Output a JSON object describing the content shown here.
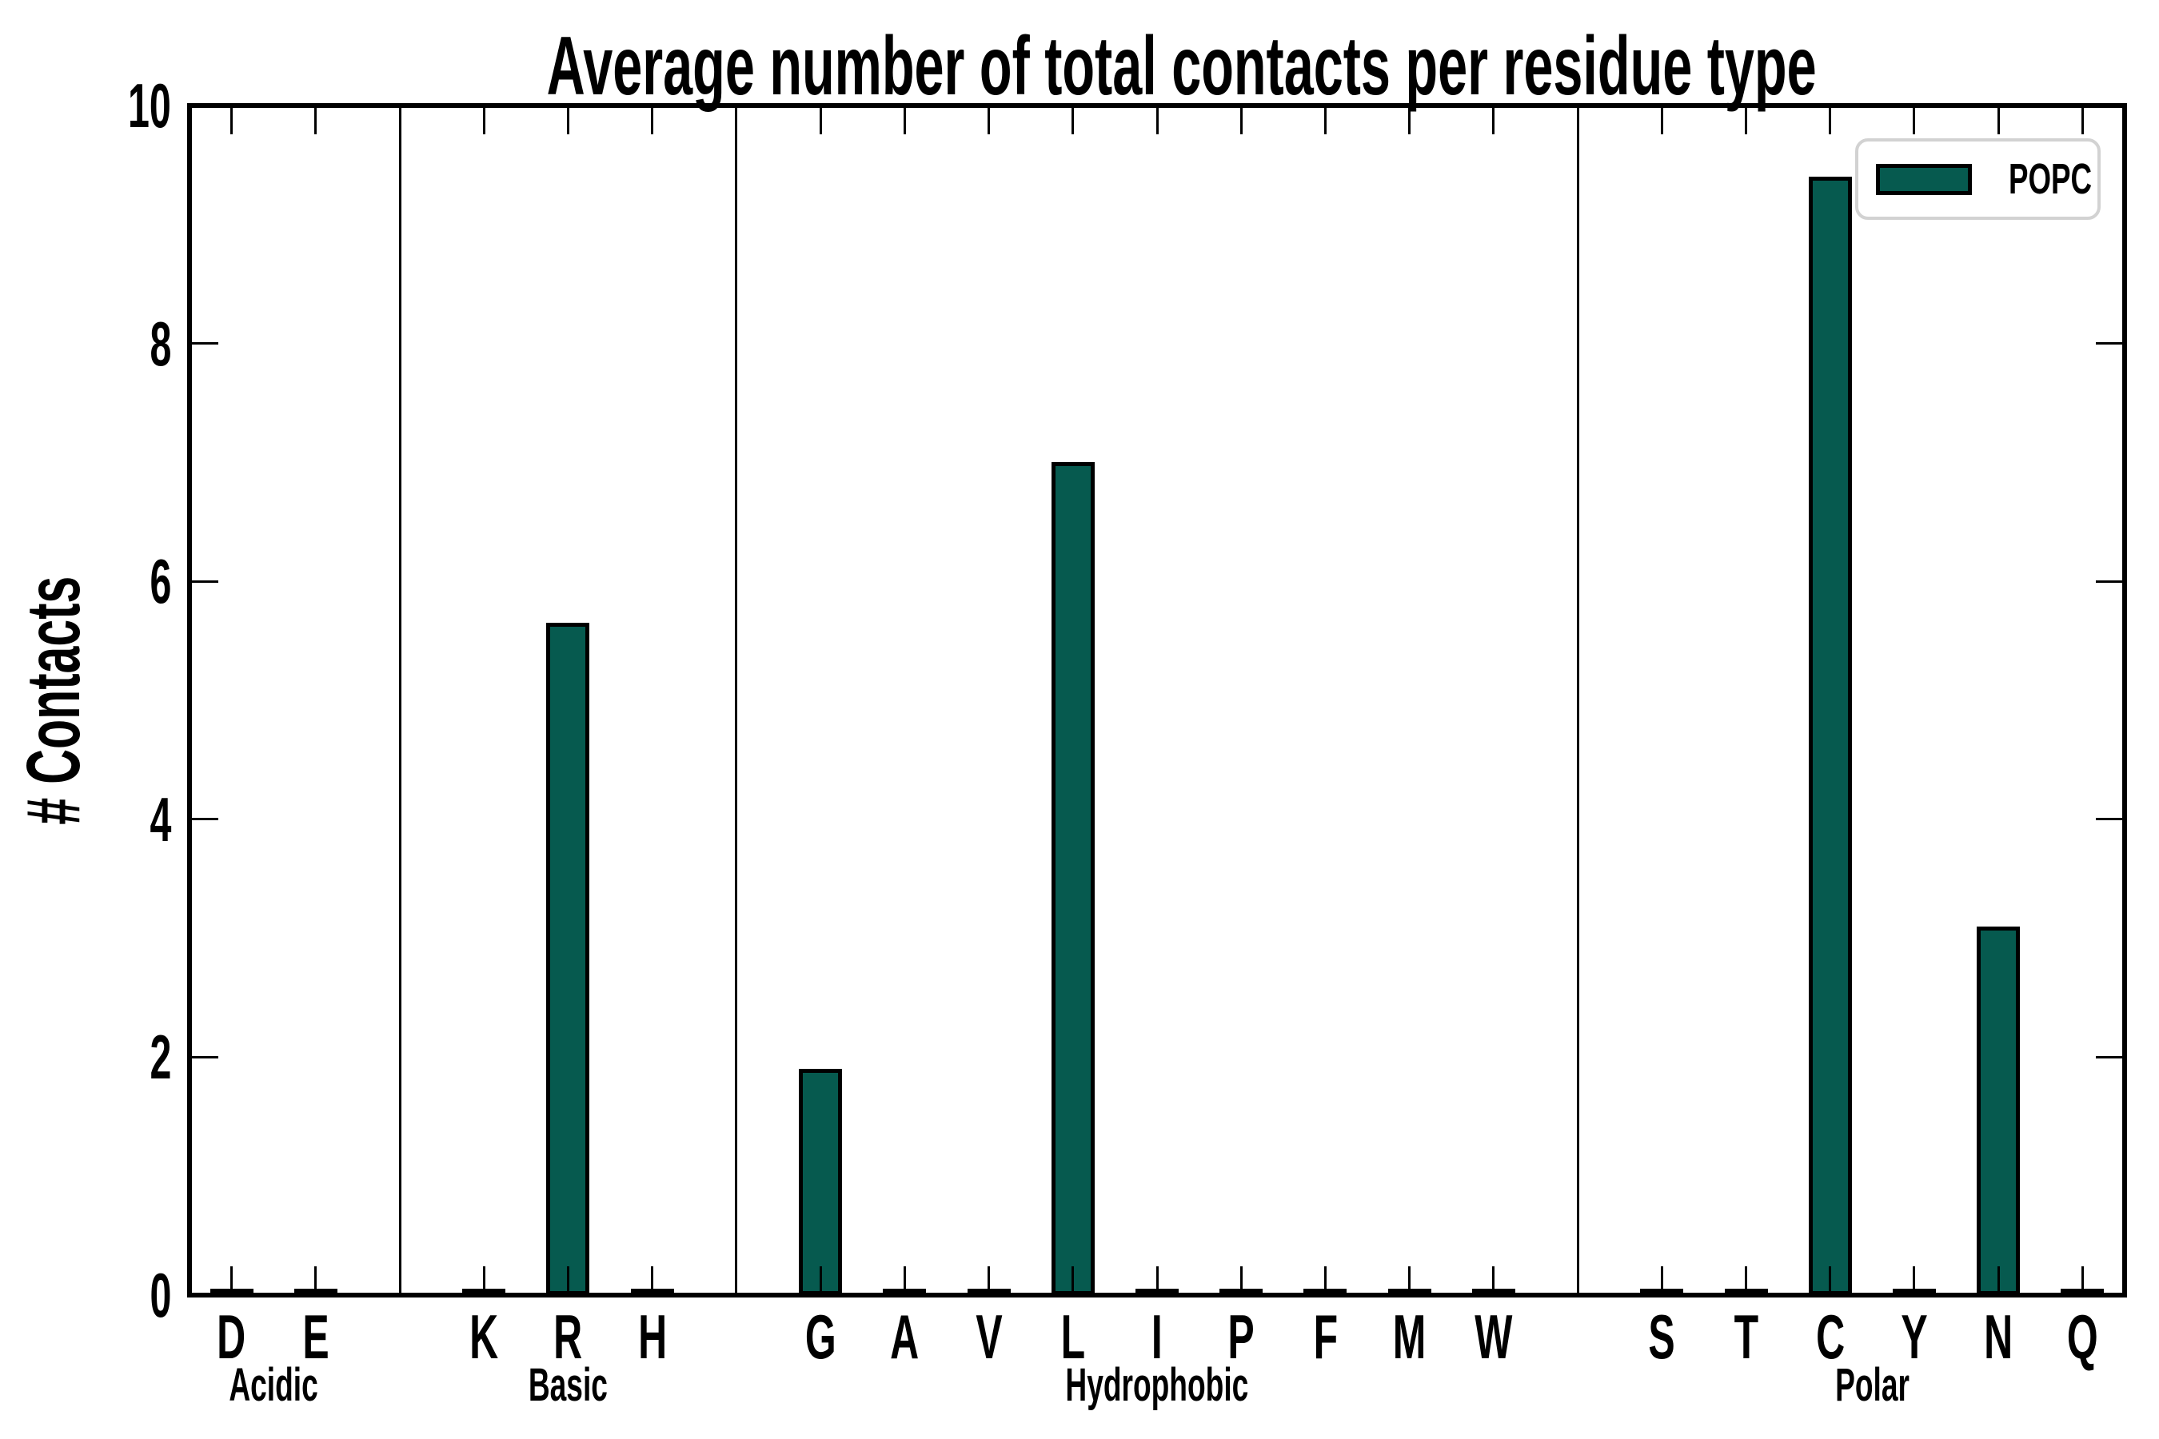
{
  "chart_data": {
    "type": "bar",
    "title": "Average number of total contacts per residue type",
    "ylabel": "# Contacts",
    "xlabel": "",
    "ylim": [
      0,
      10
    ],
    "yticks": [
      0,
      2,
      4,
      6,
      8,
      10
    ],
    "legend": [
      "POPC"
    ],
    "legend_position": "upper right",
    "grid": false,
    "groups": [
      {
        "label": "Acidic",
        "categories": [
          "D",
          "E"
        ],
        "values": [
          0,
          0
        ]
      },
      {
        "label": "Basic",
        "categories": [
          "K",
          "R",
          "H"
        ],
        "values": [
          0,
          5.65,
          0
        ]
      },
      {
        "label": "Hydrophobic",
        "categories": [
          "G",
          "A",
          "V",
          "L",
          "I",
          "P",
          "F",
          "M",
          "W"
        ],
        "values": [
          1.9,
          0,
          0,
          7.0,
          0,
          0,
          0,
          0,
          0
        ]
      },
      {
        "label": "Polar",
        "categories": [
          "S",
          "T",
          "C",
          "Y",
          "N",
          "Q"
        ],
        "values": [
          0,
          0,
          9.4,
          0,
          3.1,
          0
        ]
      }
    ],
    "colors": {
      "bar_fill": "#065a4f",
      "bar_edge": "#000000",
      "separator": "#000000",
      "legend_border": "#d2d2d2",
      "background": "#ffffff",
      "text": "#000000"
    }
  }
}
